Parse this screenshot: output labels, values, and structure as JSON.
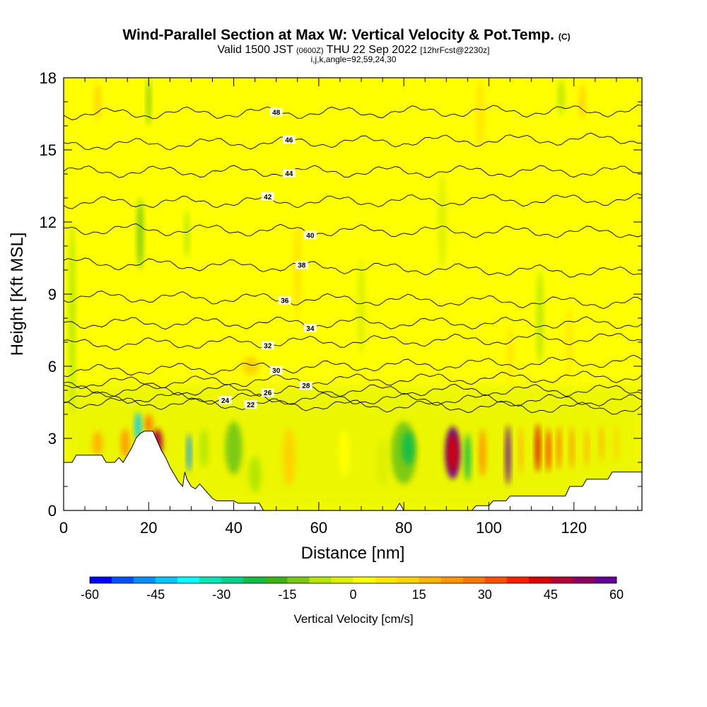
{
  "chart_data": {
    "type": "heatmap",
    "title": "Wind-Parallel Section at Max W: Vertical Velocity & Pot.Temp.",
    "title_unit": "(C)",
    "subtitle_parts": [
      "Valid 1500 JST",
      "(0600Z)",
      "THU 22 Sep 2022",
      "[12hrFcst@2230z]"
    ],
    "subtitle2": "i,j,k,angle=92,59,24,30",
    "xlabel": "Distance [nm]",
    "ylabel": "Height [Kft MSL]",
    "xlim": [
      0,
      136
    ],
    "ylim": [
      0,
      18
    ],
    "x_ticks": [
      "0",
      "20",
      "40",
      "60",
      "80",
      "100",
      "120"
    ],
    "y_ticks": [
      "0",
      "3",
      "6",
      "9",
      "12",
      "15",
      "18"
    ],
    "colorbar": {
      "label": "Vertical Velocity [cm/s]",
      "range": [
        -60,
        60
      ],
      "tick_labels": [
        "-60",
        "-45",
        "-30",
        "-15",
        "0",
        "15",
        "30",
        "45",
        "60"
      ],
      "colors": [
        "#0000ff",
        "#0050ff",
        "#0090ff",
        "#00c8ff",
        "#00ffff",
        "#00e6b4",
        "#00d28c",
        "#14be46",
        "#3cb414",
        "#78c814",
        "#b4e600",
        "#dcf000",
        "#ffff00",
        "#ffe600",
        "#ffd200",
        "#ffb400",
        "#ff9600",
        "#ff7800",
        "#ff5000",
        "#ff1e00",
        "#dc0000",
        "#b40032",
        "#8c0064",
        "#640096"
      ]
    },
    "theta_contours": [
      {
        "value": 22,
        "label": "22",
        "y0": 4.5,
        "slope": -0.002,
        "label_x": 44
      },
      {
        "value": 24,
        "label": "24",
        "y0": 4.7,
        "slope": -0.001,
        "label_x": 38
      },
      {
        "value": 26,
        "label": "26",
        "y0": 5.0,
        "slope": 0.0,
        "label_x": 48
      },
      {
        "value": 28,
        "label": "28",
        "y0": 5.3,
        "slope": 0.002,
        "label_x": 57
      },
      {
        "value": 30,
        "label": "30",
        "y0": 5.8,
        "slope": 0.003,
        "label_x": 50
      },
      {
        "value": 32,
        "label": "32",
        "y0": 6.9,
        "slope": 0.002,
        "label_x": 48
      },
      {
        "value": 34,
        "label": "34",
        "y0": 7.8,
        "slope": 0.0,
        "label_x": 58
      },
      {
        "value": 36,
        "label": "36",
        "y0": 8.9,
        "slope": -0.002,
        "label_x": 52
      },
      {
        "value": 38,
        "label": "38",
        "y0": 10.3,
        "slope": -0.003,
        "label_x": 56
      },
      {
        "value": 40,
        "label": "40",
        "y0": 11.7,
        "slope": -0.001,
        "label_x": 58
      },
      {
        "value": 42,
        "label": "42",
        "y0": 12.8,
        "slope": 0.001,
        "label_x": 48
      },
      {
        "value": 44,
        "label": "44",
        "y0": 14.1,
        "slope": 0.0,
        "label_x": 53
      },
      {
        "value": 46,
        "label": "46",
        "y0": 15.2,
        "slope": 0.002,
        "label_x": 53
      },
      {
        "value": 48,
        "label": "48",
        "y0": 16.5,
        "slope": 0.001,
        "label_x": 50
      }
    ],
    "terrain_kft": [
      [
        0,
        2.0
      ],
      [
        2,
        2.0
      ],
      [
        3,
        2.3
      ],
      [
        9,
        2.3
      ],
      [
        10,
        2.0
      ],
      [
        12,
        2.0
      ],
      [
        13,
        2.2
      ],
      [
        14,
        2.0
      ],
      [
        15,
        2.3
      ],
      [
        16,
        2.6
      ],
      [
        17,
        3.0
      ],
      [
        18,
        3.2
      ],
      [
        19,
        3.3
      ],
      [
        21,
        3.3
      ],
      [
        22,
        2.9
      ],
      [
        23,
        2.5
      ],
      [
        24,
        2.2
      ],
      [
        25,
        1.8
      ],
      [
        26,
        1.5
      ],
      [
        27,
        1.2
      ],
      [
        28,
        1.0
      ],
      [
        28.5,
        1.6
      ],
      [
        29,
        1.3
      ],
      [
        30,
        1.0
      ],
      [
        31,
        0.9
      ],
      [
        32,
        1.1
      ],
      [
        33,
        0.9
      ],
      [
        34,
        0.7
      ],
      [
        35,
        0.5
      ],
      [
        36,
        0.4
      ],
      [
        40,
        0.4
      ],
      [
        41,
        0.3
      ],
      [
        46,
        0.3
      ],
      [
        47,
        0.0
      ],
      [
        78,
        0.0
      ],
      [
        79,
        0.3
      ],
      [
        80,
        0.0
      ],
      [
        96,
        0.0
      ],
      [
        97,
        0.2
      ],
      [
        100,
        0.2
      ],
      [
        101,
        0.4
      ],
      [
        104,
        0.4
      ],
      [
        105,
        0.6
      ],
      [
        118,
        0.6
      ],
      [
        119,
        1.0
      ],
      [
        122,
        1.0
      ],
      [
        123,
        1.3
      ],
      [
        128,
        1.3
      ],
      [
        129,
        1.6
      ],
      [
        136,
        1.6
      ]
    ],
    "w_cells": [
      {
        "x": 91.5,
        "y": 2.4,
        "w": 3.5,
        "h": 2.2,
        "v": 60
      },
      {
        "x": 91.5,
        "y": 2.4,
        "w": 2.2,
        "h": 1.6,
        "v": 40
      },
      {
        "x": 95.0,
        "y": 2.2,
        "w": 1.5,
        "h": 2.0,
        "v": -25
      },
      {
        "x": 98.5,
        "y": 2.4,
        "w": 1.6,
        "h": 2.0,
        "v": 20
      },
      {
        "x": 104.5,
        "y": 2.3,
        "w": 1.2,
        "h": 2.5,
        "v": 55
      },
      {
        "x": 107.5,
        "y": 2.5,
        "w": 1.0,
        "h": 2.0,
        "v": 18
      },
      {
        "x": 111.5,
        "y": 2.6,
        "w": 1.2,
        "h": 2.0,
        "v": 40
      },
      {
        "x": 114.0,
        "y": 2.5,
        "w": 1.0,
        "h": 1.8,
        "v": 35
      },
      {
        "x": 116.5,
        "y": 2.6,
        "w": 1.0,
        "h": 1.8,
        "v": 28
      },
      {
        "x": 119.5,
        "y": 2.6,
        "w": 1.0,
        "h": 1.8,
        "v": 22
      },
      {
        "x": 123.0,
        "y": 2.6,
        "w": 1.0,
        "h": 1.6,
        "v": 18
      },
      {
        "x": 126.5,
        "y": 2.8,
        "w": 1.0,
        "h": 1.5,
        "v": 15
      },
      {
        "x": 130.0,
        "y": 2.8,
        "w": 1.0,
        "h": 1.5,
        "v": 12
      },
      {
        "x": 22.0,
        "y": 2.8,
        "w": 2.5,
        "h": 1.2,
        "v": 45
      },
      {
        "x": 20.0,
        "y": 3.6,
        "w": 1.8,
        "h": 0.8,
        "v": 25
      },
      {
        "x": 17.5,
        "y": 3.5,
        "w": 1.5,
        "h": 1.2,
        "v": -45
      },
      {
        "x": 14.5,
        "y": 2.8,
        "w": 2.0,
        "h": 1.2,
        "v": 20
      },
      {
        "x": 8.0,
        "y": 2.8,
        "w": 2.5,
        "h": 1.0,
        "v": 15
      },
      {
        "x": 29.5,
        "y": 2.4,
        "w": 1.0,
        "h": 1.6,
        "v": -50
      },
      {
        "x": 33.0,
        "y": 2.6,
        "w": 2.0,
        "h": 1.6,
        "v": -8
      },
      {
        "x": 40.0,
        "y": 2.6,
        "w": 4.0,
        "h": 2.2,
        "v": -15
      },
      {
        "x": 45.0,
        "y": 1.5,
        "w": 3.0,
        "h": 1.5,
        "v": -10
      },
      {
        "x": 53.0,
        "y": 2.2,
        "w": 3.0,
        "h": 2.4,
        "v": 10
      },
      {
        "x": 66.0,
        "y": 2.4,
        "w": 3.0,
        "h": 2.0,
        "v": 4
      },
      {
        "x": 80.0,
        "y": 2.4,
        "w": 6.0,
        "h": 2.6,
        "v": -15
      },
      {
        "x": 81.0,
        "y": 2.6,
        "w": 3.0,
        "h": 1.4,
        "v": -22
      },
      {
        "x": 75.0,
        "y": 2.0,
        "w": 2.5,
        "h": 2.0,
        "v": -5
      },
      {
        "x": 44.0,
        "y": 6.0,
        "w": 4.0,
        "h": 0.8,
        "v": 12
      },
      {
        "x": 18.0,
        "y": 11.5,
        "w": 1.5,
        "h": 3.0,
        "v": -12
      },
      {
        "x": 20.0,
        "y": 17.0,
        "w": 1.0,
        "h": 2.0,
        "v": -15
      },
      {
        "x": 29.0,
        "y": 11.5,
        "w": 1.2,
        "h": 2.0,
        "v": -8
      },
      {
        "x": 117.0,
        "y": 17.2,
        "w": 1.5,
        "h": 1.5,
        "v": -8
      },
      {
        "x": 2.0,
        "y": 8.0,
        "w": 1.5,
        "h": 8.0,
        "v": -6
      },
      {
        "x": 98.0,
        "y": 16.5,
        "w": 2.0,
        "h": 3.0,
        "v": 8
      },
      {
        "x": 122.0,
        "y": 17.0,
        "w": 1.5,
        "h": 1.5,
        "v": 10
      },
      {
        "x": 8.0,
        "y": 17.0,
        "w": 1.5,
        "h": 1.5,
        "v": 10
      },
      {
        "x": 55.0,
        "y": 10.0,
        "w": 2.0,
        "h": 4.0,
        "v": 6
      },
      {
        "x": 70.0,
        "y": 8.5,
        "w": 2.0,
        "h": 4.0,
        "v": -5
      },
      {
        "x": 112.0,
        "y": 8.0,
        "w": 1.5,
        "h": 4.0,
        "v": -6
      },
      {
        "x": 105.0,
        "y": 6.5,
        "w": 1.5,
        "h": 2.5,
        "v": 8
      },
      {
        "x": 119.0,
        "y": 7.0,
        "w": 1.5,
        "h": 3.0,
        "v": 8
      },
      {
        "x": 89.0,
        "y": 12.0,
        "w": 2.0,
        "h": 4.0,
        "v": -5
      }
    ]
  }
}
